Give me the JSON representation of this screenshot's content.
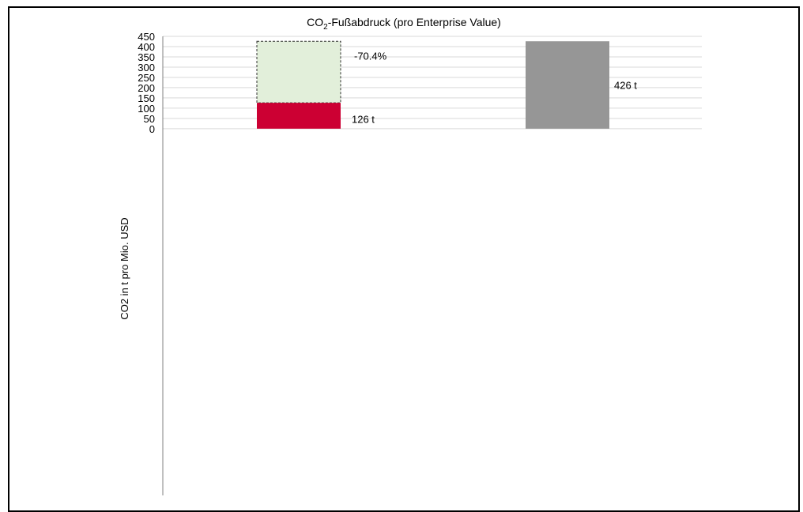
{
  "chart_data": {
    "type": "bar",
    "title_prefix": "CO",
    "title_sub": "2",
    "title_suffix": "-Fußabdruck (pro Enterprise Value)",
    "ylabel": "CO2 in t pro Mio. USD",
    "xlabel": "",
    "ylim": [
      0,
      450
    ],
    "yticks": [
      0,
      50,
      100,
      150,
      200,
      250,
      300,
      350,
      400,
      450
    ],
    "grid": true,
    "bars": [
      {
        "value": 126,
        "label": "126 t",
        "color": "#cc0033",
        "reduction_to": 426,
        "reduction_color": "#e2efda",
        "reduction_label": "-70.4%"
      },
      {
        "value": 426,
        "label": "426 t",
        "color": "#969696"
      }
    ]
  }
}
